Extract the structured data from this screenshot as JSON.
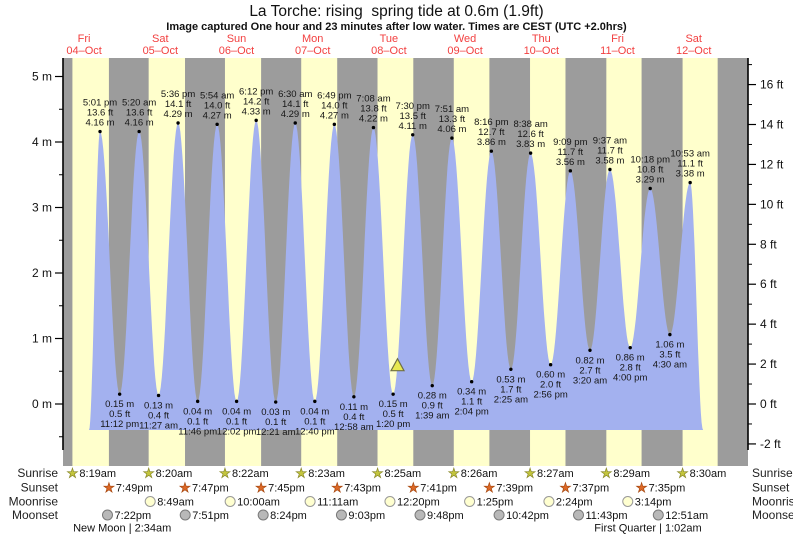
{
  "chart_data": {
    "type": "area",
    "title": "La Torche: rising  spring tide at 0.6m (1.9ft)",
    "subtitle": "Image captured One hour and 23 minutes after low water. Times are CEST (UTC +2.0hrs)",
    "row_labels": {
      "sunrise": "Sunrise",
      "sunset": "Sunset",
      "moonrise": "Moonrise",
      "moonset": "Moonset"
    },
    "y_axis_left": {
      "unit": "m",
      "major_ticks": [
        5,
        4,
        3,
        2,
        1,
        0
      ],
      "minor_step": 0.5
    },
    "y_axis_right": {
      "unit": "ft",
      "major_ticks": [
        16,
        14,
        12,
        10,
        8,
        6,
        4,
        2,
        0,
        -2
      ],
      "minor_step": 1
    },
    "days": [
      {
        "name": "Fri",
        "date": "04–Oct",
        "sunrise": "8:19am",
        "sunset": "7:49pm",
        "moonrise": null,
        "moonset": "7:22pm"
      },
      {
        "name": "Sat",
        "date": "05–Oct",
        "sunrise": "8:20am",
        "sunset": "7:47pm",
        "moonrise": "8:49am",
        "moonset": "7:51pm"
      },
      {
        "name": "Sun",
        "date": "06–Oct",
        "sunrise": "8:22am",
        "sunset": "7:45pm",
        "moonrise": "10:00am",
        "moonset": "8:24pm"
      },
      {
        "name": "Mon",
        "date": "07–Oct",
        "sunrise": "8:23am",
        "sunset": "7:43pm",
        "moonrise": "11:11am",
        "moonset": "9:03pm"
      },
      {
        "name": "Tue",
        "date": "08–Oct",
        "sunrise": "8:25am",
        "sunset": "7:41pm",
        "moonrise": "12:20pm",
        "moonset": "9:48pm"
      },
      {
        "name": "Wed",
        "date": "09–Oct",
        "sunrise": "8:26am",
        "sunset": "7:39pm",
        "moonrise": "1:25pm",
        "moonset": "10:42pm"
      },
      {
        "name": "Thu",
        "date": "10–Oct",
        "sunrise": "8:27am",
        "sunset": "7:37pm",
        "moonrise": "2:24pm",
        "moonset": "11:43pm"
      },
      {
        "name": "Fri",
        "date": "11–Oct",
        "sunrise": "8:29am",
        "sunset": "7:35pm",
        "moonrise": "3:14pm",
        "moonset": null
      },
      {
        "name": "Sat",
        "date": "12–Oct",
        "sunrise": "8:30am",
        "sunset": null,
        "daylight_band_end": "7:33pm",
        "moonrise": null,
        "moonset": "12:51am"
      }
    ],
    "high_tides": [
      {
        "day": 0,
        "time": "5:01 pm",
        "ft": "13.6 ft",
        "m": "4.16 m",
        "height_m": 4.16
      },
      {
        "day": 1,
        "time": "5:20 am",
        "ft": "13.6 ft",
        "m": "4.16 m",
        "height_m": 4.16
      },
      {
        "day": 1,
        "time": "5:36 pm",
        "ft": "14.1 ft",
        "m": "4.29 m",
        "height_m": 4.29
      },
      {
        "day": 2,
        "time": "5:54 am",
        "ft": "14.0 ft",
        "m": "4.27 m",
        "height_m": 4.27
      },
      {
        "day": 2,
        "time": "6:12 pm",
        "ft": "14.2 ft",
        "m": "4.33 m",
        "height_m": 4.33
      },
      {
        "day": 3,
        "time": "6:30 am",
        "ft": "14.1 ft",
        "m": "4.29 m",
        "height_m": 4.29
      },
      {
        "day": 3,
        "time": "6:49 pm",
        "ft": "14.0 ft",
        "m": "4.27 m",
        "height_m": 4.27
      },
      {
        "day": 4,
        "time": "7:08 am",
        "ft": "13.8 ft",
        "m": "4.22 m",
        "height_m": 4.22
      },
      {
        "day": 4,
        "time": "7:30 pm",
        "ft": "13.5 ft",
        "m": "4.11 m",
        "height_m": 4.11
      },
      {
        "day": 5,
        "time": "7:51 am",
        "ft": "13.3 ft",
        "m": "4.06 m",
        "height_m": 4.06
      },
      {
        "day": 5,
        "time": "8:16 pm",
        "ft": "12.7 ft",
        "m": "3.86 m",
        "height_m": 3.86
      },
      {
        "day": 6,
        "time": "8:38 am",
        "ft": "12.6 ft",
        "m": "3.83 m",
        "height_m": 3.83
      },
      {
        "day": 6,
        "time": "9:09 pm",
        "ft": "11.7 ft",
        "m": "3.56 m",
        "height_m": 3.56
      },
      {
        "day": 7,
        "time": "9:37 am",
        "ft": "11.7 ft",
        "m": "3.58 m",
        "height_m": 3.58
      },
      {
        "day": 7,
        "time": "10:18 pm",
        "ft": "10.8 ft",
        "m": "3.29 m",
        "height_m": 3.29
      },
      {
        "day": 8,
        "time": "10:53 am",
        "ft": "11.1 ft",
        "m": "3.38 m",
        "height_m": 3.38
      }
    ],
    "low_tides": [
      {
        "day": 0,
        "time": "11:12 pm",
        "m": "0.15 m",
        "ft": "0.5 ft",
        "height_m": 0.15
      },
      {
        "day": 1,
        "time": "11:27 am",
        "m": "0.13 m",
        "ft": "0.4 ft",
        "height_m": 0.13
      },
      {
        "day": 1,
        "time": "11:46 pm",
        "m": "0.04 m",
        "ft": "0.1 ft",
        "height_m": 0.04
      },
      {
        "day": 2,
        "time": "12:02 pm",
        "m": "0.04 m",
        "ft": "0.1 ft",
        "height_m": 0.04
      },
      {
        "day": 3,
        "time": "12:21 am",
        "m": "0.03 m",
        "ft": "0.1 ft",
        "height_m": 0.03
      },
      {
        "day": 3,
        "time": "12:40 pm",
        "m": "0.04 m",
        "ft": "0.1 ft",
        "height_m": 0.04
      },
      {
        "day": 4,
        "time": "12:58 am",
        "m": "0.11 m",
        "ft": "0.4 ft",
        "height_m": 0.11
      },
      {
        "day": 4,
        "time": "1:20 pm",
        "m": "0.15 m",
        "ft": "0.5 ft",
        "height_m": 0.15
      },
      {
        "day": 5,
        "time": "1:39 am",
        "m": "0.28 m",
        "ft": "0.9 ft",
        "height_m": 0.28
      },
      {
        "day": 5,
        "time": "2:04 pm",
        "m": "0.34 m",
        "ft": "1.1 ft",
        "height_m": 0.34
      },
      {
        "day": 6,
        "time": "2:25 am",
        "m": "0.53 m",
        "ft": "1.7 ft",
        "height_m": 0.53
      },
      {
        "day": 6,
        "time": "2:56 pm",
        "m": "0.60 m",
        "ft": "2.0 ft",
        "height_m": 0.6
      },
      {
        "day": 7,
        "time": "3:20 am",
        "m": "0.82 m",
        "ft": "2.7 ft",
        "height_m": 0.82
      },
      {
        "day": 7,
        "time": "4:00 pm",
        "m": "0.86 m",
        "ft": "2.8 ft",
        "height_m": 0.86
      },
      {
        "day": 8,
        "time": "4:30 am",
        "m": "1.06 m",
        "ft": "3.5 ft",
        "height_m": 1.06
      }
    ],
    "moon_phases": [
      {
        "label": "New Moon | 2:34am",
        "day_offset": 1.0
      },
      {
        "label": "First Quarter | 1:02am",
        "day_offset": 7.9
      }
    ],
    "current_marker": {
      "day_offset": 4.613,
      "height_m": 0.6
    },
    "colors": {
      "night_band": "#9c9c9c",
      "day_band": "#ffffcc",
      "tide_fill": "#a3b1ef",
      "date_red": "#f24040",
      "marker_yellow": "#e8e850",
      "marker_outline": "#6f6f45",
      "sunrise_star": "#c3c53d",
      "sunrise_star_edge": "#8a8a2a",
      "sunset_star": "#dd6826",
      "sunset_star_edge": "#a84a12",
      "moonrise_disc": "#ffffd0",
      "moonrise_disc_edge": "#999999",
      "moonset_disc": "#b8b8b8",
      "moonset_disc_edge": "#7a7a7a",
      "annotation_text": "#161616"
    }
  }
}
